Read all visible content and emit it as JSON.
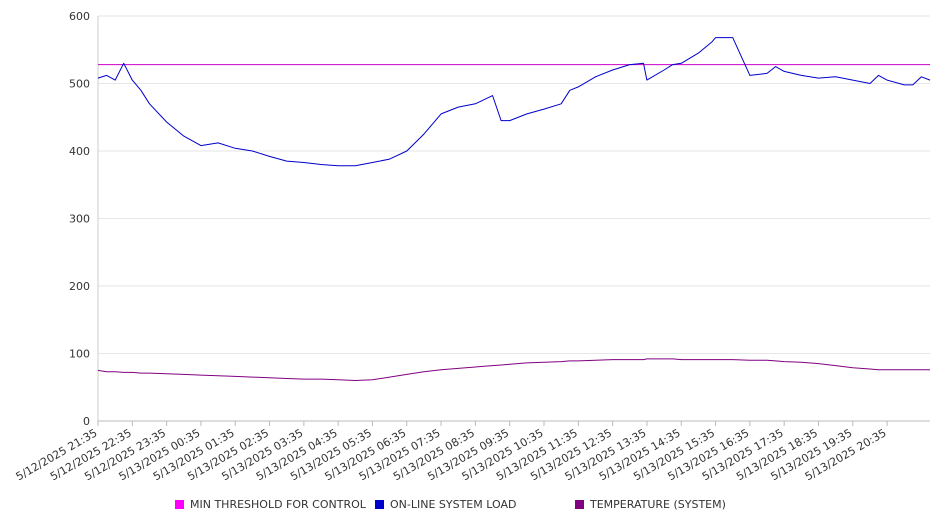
{
  "chart_data": {
    "type": "line",
    "title": "",
    "xlabel": "",
    "ylabel": "",
    "ylim": [
      0,
      600
    ],
    "y_ticks": [
      0,
      100,
      200,
      300,
      400,
      500,
      600
    ],
    "grid": "horizontal",
    "legend_position": "bottom",
    "x_tick_labels": [
      "5/12/2025 21:35",
      "5/12/2025 22:35",
      "5/12/2025 23:35",
      "5/13/2025 00:35",
      "5/13/2025 01:35",
      "5/13/2025 02:35",
      "5/13/2025 03:35",
      "5/13/2025 04:35",
      "5/13/2025 05:35",
      "5/13/2025 06:35",
      "5/13/2025 07:35",
      "5/13/2025 08:35",
      "5/13/2025 09:35",
      "5/13/2025 10:35",
      "5/13/2025 11:35",
      "5/13/2025 12:35",
      "5/13/2025 13:35",
      "5/13/2025 14:35",
      "5/13/2025 15:35",
      "5/13/2025 16:35",
      "5/13/2025 17:35",
      "5/13/2025 18:35",
      "5/13/2025 19:35",
      "5/13/2025 20:35"
    ],
    "x_hours": [
      0,
      0.25,
      0.5,
      0.75,
      1,
      1.25,
      1.5,
      2,
      2.5,
      3,
      3.5,
      4,
      4.5,
      5,
      5.5,
      6,
      6.5,
      7,
      7.5,
      8,
      8.5,
      9,
      9.5,
      10,
      10.5,
      11,
      11.25,
      11.5,
      11.75,
      12,
      12.5,
      13,
      13.5,
      13.75,
      14,
      14.5,
      15,
      15.5,
      15.9,
      16,
      16.5,
      16.75,
      17,
      17.5,
      17.9,
      18,
      18.5,
      19,
      19.5,
      19.75,
      20,
      20.5,
      21,
      21.5,
      22,
      22.5,
      22.75,
      23,
      23.5,
      23.75,
      24,
      24.25
    ],
    "series": [
      {
        "name": "MIN THRESHOLD FOR CONTROL",
        "color": "#cc00cc",
        "values": [
          528,
          528,
          528,
          528,
          528,
          528,
          528,
          528,
          528,
          528,
          528,
          528,
          528,
          528,
          528,
          528,
          528,
          528,
          528,
          528,
          528,
          528,
          528,
          528,
          528,
          528,
          528,
          528,
          528,
          528,
          528,
          528,
          528,
          528,
          528,
          528,
          528,
          528,
          528,
          528,
          528,
          528,
          528,
          528,
          528,
          528,
          528,
          528,
          528,
          528,
          528,
          528,
          528,
          528,
          528,
          528,
          528,
          528,
          528,
          528,
          528,
          528
        ]
      },
      {
        "name": "ON-LINE SYSTEM LOAD",
        "color": "#0000cc",
        "values": [
          508,
          512,
          505,
          530,
          505,
          490,
          470,
          443,
          422,
          408,
          412,
          404,
          400,
          392,
          385,
          383,
          380,
          378,
          378,
          383,
          388,
          400,
          425,
          455,
          465,
          470,
          476,
          482,
          445,
          445,
          455,
          462,
          470,
          490,
          495,
          510,
          520,
          528,
          530,
          505,
          520,
          528,
          530,
          545,
          562,
          568,
          568,
          512,
          515,
          525,
          518,
          512,
          508,
          510,
          505,
          500,
          512,
          505,
          498,
          498,
          510,
          505
        ]
      },
      {
        "name": "TEMPERATURE (SYSTEM)",
        "color": "#800080",
        "values": [
          75,
          73,
          73,
          72,
          72,
          71,
          71,
          70,
          69,
          68,
          67,
          66,
          65,
          64,
          63,
          62,
          62,
          61,
          60,
          61,
          65,
          69,
          73,
          76,
          78,
          80,
          81,
          82,
          83,
          84,
          86,
          87,
          88,
          89,
          89,
          90,
          91,
          91,
          91,
          92,
          92,
          92,
          91,
          91,
          91,
          91,
          91,
          90,
          90,
          89,
          88,
          87,
          85,
          82,
          79,
          77,
          76,
          76,
          76,
          76,
          76,
          76
        ]
      }
    ]
  }
}
